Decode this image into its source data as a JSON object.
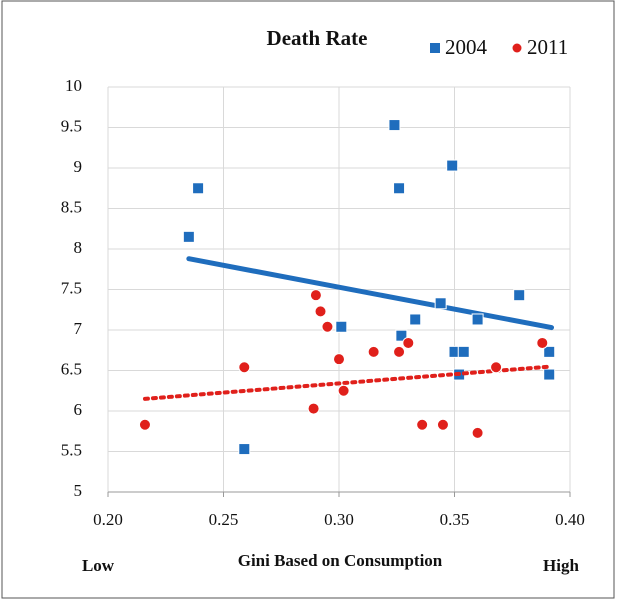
{
  "chart_data": {
    "type": "scatter",
    "title": "Death Rate",
    "x_label": "Gini Based on Consumption",
    "x_low_label": "Low",
    "x_high_label": "High",
    "xlim": [
      0.2,
      0.4
    ],
    "xticks": [
      {
        "value": 0.2,
        "label": "0.20"
      },
      {
        "value": 0.25,
        "label": "0.25"
      },
      {
        "value": 0.3,
        "label": "0.30"
      },
      {
        "value": 0.35,
        "label": "0.35"
      },
      {
        "value": 0.4,
        "label": "0.40"
      }
    ],
    "ylim": [
      5,
      10
    ],
    "yticks": [
      5,
      5.5,
      6,
      6.5,
      7,
      7.5,
      8,
      8.5,
      9,
      9.5,
      10
    ],
    "grid": true,
    "legend": "top-right",
    "series": [
      {
        "name": "2004",
        "color": "#1f6dbd",
        "marker": "square",
        "x": [
          0.235,
          0.239,
          0.259,
          0.301,
          0.324,
          0.326,
          0.327,
          0.333,
          0.344,
          0.349,
          0.35,
          0.352,
          0.354,
          0.36,
          0.378,
          0.391,
          0.391
        ],
        "values": [
          8.15,
          8.75,
          5.53,
          7.04,
          9.53,
          8.75,
          6.93,
          7.13,
          7.33,
          9.03,
          6.73,
          6.45,
          6.73,
          7.13,
          7.43,
          6.73,
          6.45
        ],
        "trend_x": [
          0.235,
          0.392
        ],
        "trend_values": [
          7.88,
          7.03
        ]
      },
      {
        "name": "2011",
        "color": "#e0201b",
        "marker": "circle",
        "x": [
          0.216,
          0.259,
          0.289,
          0.29,
          0.292,
          0.295,
          0.3,
          0.302,
          0.315,
          0.326,
          0.33,
          0.336,
          0.345,
          0.36,
          0.368,
          0.388
        ],
        "values": [
          5.83,
          6.54,
          6.03,
          7.43,
          7.23,
          7.04,
          6.64,
          6.25,
          6.73,
          6.73,
          6.84,
          5.83,
          5.83,
          5.73,
          6.54,
          6.84
        ],
        "trend_x": [
          0.216,
          0.392
        ],
        "trend_values": [
          6.15,
          6.55
        ]
      }
    ]
  }
}
